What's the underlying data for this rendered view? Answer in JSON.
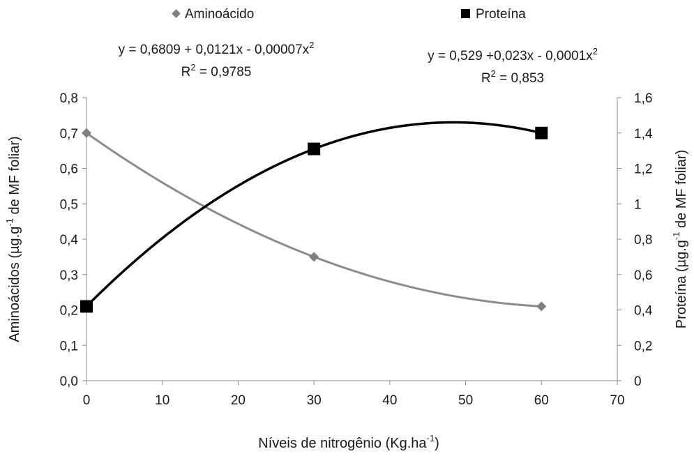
{
  "chart_data": {
    "type": "scatter",
    "xlabel": "Níveis de nitrogênio (Kg.ha",
    "xlabel_sup": "-1",
    "xlabel_end": ")",
    "ylabel_left": {
      "pre": "Aminoácidos (µg.g",
      "sup": "-1",
      "post": " de MF foliar)"
    },
    "ylabel_right": {
      "pre": "Proteína (µg.g",
      "sup": "-1",
      "post": " de MF foliar)"
    },
    "xlim": [
      0,
      70
    ],
    "ylim_left": [
      0,
      0.8
    ],
    "ylim_right": [
      0,
      1.6
    ],
    "x_ticks": [
      "0",
      "10",
      "20",
      "30",
      "40",
      "50",
      "60",
      "70"
    ],
    "y_left_ticks": [
      "0,0",
      "0,1",
      "0,2",
      "0,3",
      "0,4",
      "0,5",
      "0,6",
      "0,7",
      "0,8"
    ],
    "y_right_ticks": [
      "0",
      "0,2",
      "0,4",
      "0,6",
      "0,8",
      "1",
      "1,2",
      "1,4",
      "1,6"
    ],
    "grid": false,
    "legend_position": "top",
    "series": [
      {
        "name": "Aminoácido",
        "axis": "left",
        "marker": "diamond",
        "color": "#7f7f7f",
        "line_color": "#8c8c8c",
        "x": [
          0,
          30,
          60
        ],
        "y": [
          0.7,
          0.35,
          0.21
        ],
        "trend": {
          "a": 0.6809,
          "b": 0.0121,
          "c": -7e-05
        },
        "equation": "y = 0,6809 + 0,0121x - 0,00007x",
        "equation_sup": "2",
        "r2_prefix": "R",
        "r2_sup": "2",
        "r2_value": " = 0,9785"
      },
      {
        "name": "Proteína",
        "axis": "right",
        "marker": "square",
        "color": "#000000",
        "line_color": "#000000",
        "x": [
          0,
          30,
          60
        ],
        "y": [
          0.42,
          1.31,
          1.4
        ],
        "trend": {
          "a": 0.529,
          "b": 0.023,
          "c": -0.0001
        },
        "equation": "y = 0,529 +0,023x - 0,0001x",
        "equation_sup": "2",
        "r2_prefix": "R",
        "r2_sup": "2",
        "r2_value": " = 0,853"
      }
    ]
  }
}
